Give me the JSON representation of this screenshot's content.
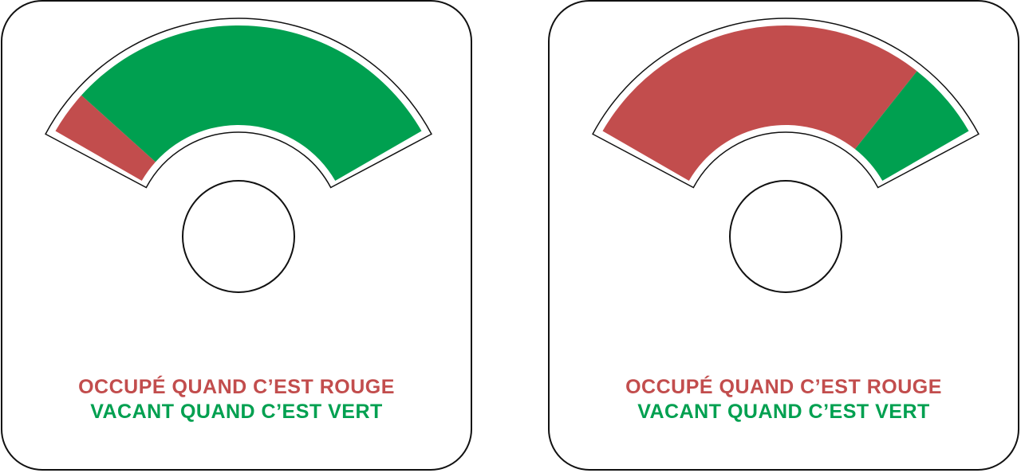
{
  "colors": {
    "occupied": "#c24d4d",
    "vacant": "#00a050",
    "outline": "#111111",
    "background": "#ffffff"
  },
  "cards": [
    {
      "state": "vacant",
      "occupied_fraction": 0.1,
      "line_red": "OCCUPÉ QUAND C’EST ROUGE",
      "line_green": "VACANT QUAND C’EST VERT"
    },
    {
      "state": "occupied",
      "occupied_fraction": 0.82,
      "line_red": "OCCUPÉ QUAND C’EST ROUGE",
      "line_green": "VACANT QUAND C’EST VERT"
    }
  ]
}
